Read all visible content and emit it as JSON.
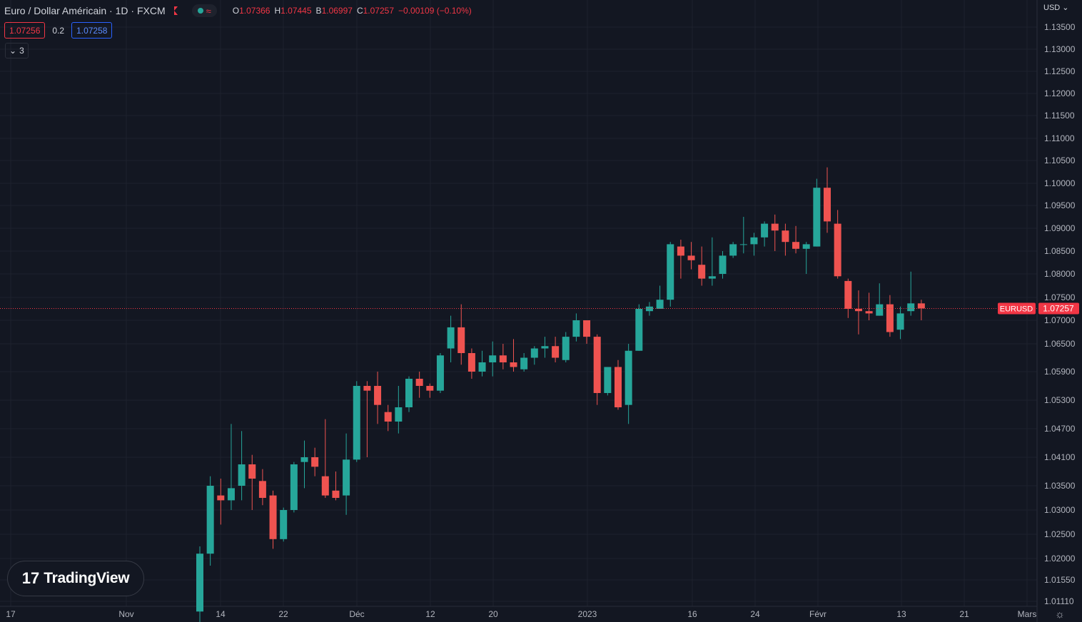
{
  "header": {
    "symbol_title": "Euro / Dollar Américain · 1D · FXCM",
    "ohlc": {
      "o_label": "O",
      "o": "1.07366",
      "h_label": "H",
      "h": "1.07445",
      "l_label": "B",
      "l": "1.06997",
      "c_label": "C",
      "c": "1.07257",
      "change": "−0.00109 (−0.10%)"
    },
    "bid": "1.07256",
    "spread": "0.2",
    "ask": "1.07258",
    "indicators_count": "3",
    "currency": "USD"
  },
  "logo": {
    "text": "TradingView",
    "mark": "17"
  },
  "colors": {
    "up": "#26a69a",
    "down": "#ef5350",
    "background": "#131722",
    "grid": "#1e222d",
    "price_line": "#f23645"
  },
  "chart_data": {
    "type": "candlestick",
    "symbol": "EURUSD",
    "last_price": "1.07257",
    "y_ticks": [
      "1.13500",
      "1.13000",
      "1.12500",
      "1.12000",
      "1.11500",
      "1.11000",
      "1.10500",
      "1.10000",
      "1.09500",
      "1.09000",
      "1.08500",
      "1.08000",
      "1.07500",
      "1.07000",
      "1.06500",
      "1.05900",
      "1.05300",
      "1.04700",
      "1.04100",
      "1.03500",
      "1.03000",
      "1.02500",
      "1.02000",
      "1.01550",
      "1.01110"
    ],
    "x_ticks": [
      "17",
      "Nov",
      "14",
      "22",
      "Déc",
      "12",
      "20",
      "2023",
      "16",
      "24",
      "Févr",
      "13",
      "21",
      "Mars"
    ],
    "candles": [
      {
        "o": 1.009,
        "h": 1.0225,
        "l": 1.005,
        "c": 1.021
      },
      {
        "o": 1.021,
        "h": 1.037,
        "l": 1.0185,
        "c": 1.035
      },
      {
        "o": 1.033,
        "h": 1.0365,
        "l": 1.027,
        "c": 1.032
      },
      {
        "o": 1.032,
        "h": 1.048,
        "l": 1.03,
        "c": 1.0345
      },
      {
        "o": 1.035,
        "h": 1.0465,
        "l": 1.032,
        "c": 1.0395
      },
      {
        "o": 1.0395,
        "h": 1.0415,
        "l": 1.03,
        "c": 1.0365
      },
      {
        "o": 1.036,
        "h": 1.0385,
        "l": 1.031,
        "c": 1.0325
      },
      {
        "o": 1.033,
        "h": 1.034,
        "l": 1.022,
        "c": 1.024
      },
      {
        "o": 1.024,
        "h": 1.0305,
        "l": 1.0235,
        "c": 1.03
      },
      {
        "o": 1.03,
        "h": 1.04,
        "l": 1.0295,
        "c": 1.0395
      },
      {
        "o": 1.04,
        "h": 1.0445,
        "l": 1.0345,
        "c": 1.041
      },
      {
        "o": 1.041,
        "h": 1.043,
        "l": 1.037,
        "c": 1.039
      },
      {
        "o": 1.037,
        "h": 1.049,
        "l": 1.0325,
        "c": 1.033
      },
      {
        "o": 1.034,
        "h": 1.038,
        "l": 1.032,
        "c": 1.0325
      },
      {
        "o": 1.033,
        "h": 1.046,
        "l": 1.029,
        "c": 1.0405
      },
      {
        "o": 1.0405,
        "h": 1.057,
        "l": 1.04,
        "c": 1.056
      },
      {
        "o": 1.056,
        "h": 1.057,
        "l": 1.041,
        "c": 1.055
      },
      {
        "o": 1.056,
        "h": 1.059,
        "l": 1.048,
        "c": 1.052
      },
      {
        "o": 1.0505,
        "h": 1.052,
        "l": 1.0465,
        "c": 1.0485
      },
      {
        "o": 1.0485,
        "h": 1.056,
        "l": 1.046,
        "c": 1.0515
      },
      {
        "o": 1.0515,
        "h": 1.058,
        "l": 1.0505,
        "c": 1.0575
      },
      {
        "o": 1.0575,
        "h": 1.059,
        "l": 1.0535,
        "c": 1.056
      },
      {
        "o": 1.056,
        "h": 1.0565,
        "l": 1.0535,
        "c": 1.055
      },
      {
        "o": 1.055,
        "h": 1.063,
        "l": 1.0545,
        "c": 1.0625
      },
      {
        "o": 1.064,
        "h": 1.071,
        "l": 1.061,
        "c": 1.0685
      },
      {
        "o": 1.0685,
        "h": 1.0735,
        "l": 1.0605,
        "c": 1.063
      },
      {
        "o": 1.063,
        "h": 1.064,
        "l": 1.0575,
        "c": 1.059
      },
      {
        "o": 1.059,
        "h": 1.0635,
        "l": 1.058,
        "c": 1.061
      },
      {
        "o": 1.061,
        "h": 1.0655,
        "l": 1.058,
        "c": 1.0625
      },
      {
        "o": 1.0625,
        "h": 1.065,
        "l": 1.0595,
        "c": 1.061
      },
      {
        "o": 1.061,
        "h": 1.066,
        "l": 1.059,
        "c": 1.06
      },
      {
        "o": 1.0595,
        "h": 1.063,
        "l": 1.059,
        "c": 1.062
      },
      {
        "o": 1.062,
        "h": 1.0645,
        "l": 1.0605,
        "c": 1.064
      },
      {
        "o": 1.064,
        "h": 1.0665,
        "l": 1.062,
        "c": 1.0645
      },
      {
        "o": 1.0645,
        "h": 1.0665,
        "l": 1.061,
        "c": 1.062
      },
      {
        "o": 1.0615,
        "h": 1.0675,
        "l": 1.061,
        "c": 1.0665
      },
      {
        "o": 1.0665,
        "h": 1.0715,
        "l": 1.0655,
        "c": 1.07
      },
      {
        "o": 1.07,
        "h": 1.07,
        "l": 1.065,
        "c": 1.0665
      },
      {
        "o": 1.0665,
        "h": 1.067,
        "l": 1.052,
        "c": 1.0545
      },
      {
        "o": 1.0545,
        "h": 1.06,
        "l": 1.054,
        "c": 1.06
      },
      {
        "o": 1.06,
        "h": 1.0615,
        "l": 1.051,
        "c": 1.0515
      },
      {
        "o": 1.052,
        "h": 1.065,
        "l": 1.048,
        "c": 1.0635
      },
      {
        "o": 1.0635,
        "h": 1.0735,
        "l": 1.0635,
        "c": 1.0725
      },
      {
        "o": 1.072,
        "h": 1.074,
        "l": 1.071,
        "c": 1.073
      },
      {
        "o": 1.0725,
        "h": 1.0775,
        "l": 1.0725,
        "c": 1.0745
      },
      {
        "o": 1.0745,
        "h": 1.087,
        "l": 1.073,
        "c": 1.0865
      },
      {
        "o": 1.086,
        "h": 1.0875,
        "l": 1.079,
        "c": 1.084
      },
      {
        "o": 1.084,
        "h": 1.087,
        "l": 1.081,
        "c": 1.083
      },
      {
        "o": 1.082,
        "h": 1.086,
        "l": 1.0775,
        "c": 1.079
      },
      {
        "o": 1.079,
        "h": 1.088,
        "l": 1.0775,
        "c": 1.0795
      },
      {
        "o": 1.08,
        "h": 1.085,
        "l": 1.079,
        "c": 1.084
      },
      {
        "o": 1.084,
        "h": 1.087,
        "l": 1.0835,
        "c": 1.0865
      },
      {
        "o": 1.0865,
        "h": 1.0925,
        "l": 1.0845,
        "c": 1.0865
      },
      {
        "o": 1.0865,
        "h": 1.089,
        "l": 1.084,
        "c": 1.088
      },
      {
        "o": 1.088,
        "h": 1.0915,
        "l": 1.086,
        "c": 1.091
      },
      {
        "o": 1.091,
        "h": 1.093,
        "l": 1.085,
        "c": 1.0895
      },
      {
        "o": 1.0895,
        "h": 1.091,
        "l": 1.084,
        "c": 1.087
      },
      {
        "o": 1.087,
        "h": 1.0905,
        "l": 1.0845,
        "c": 1.0855
      },
      {
        "o": 1.0855,
        "h": 1.087,
        "l": 1.08,
        "c": 1.0865
      },
      {
        "o": 1.086,
        "h": 1.101,
        "l": 1.086,
        "c": 1.099
      },
      {
        "o": 1.099,
        "h": 1.1035,
        "l": 1.089,
        "c": 1.0915
      },
      {
        "o": 1.091,
        "h": 1.094,
        "l": 1.079,
        "c": 1.0795
      },
      {
        "o": 1.0785,
        "h": 1.079,
        "l": 1.0705,
        "c": 1.0725
      },
      {
        "o": 1.0725,
        "h": 1.0765,
        "l": 1.067,
        "c": 1.072
      },
      {
        "o": 1.072,
        "h": 1.076,
        "l": 1.07,
        "c": 1.0715
      },
      {
        "o": 1.071,
        "h": 1.078,
        "l": 1.071,
        "c": 1.0735
      },
      {
        "o": 1.0735,
        "h": 1.0755,
        "l": 1.0665,
        "c": 1.0675
      },
      {
        "o": 1.068,
        "h": 1.073,
        "l": 1.066,
        "c": 1.0715
      },
      {
        "o": 1.072,
        "h": 1.0805,
        "l": 1.071,
        "c": 1.0737
      },
      {
        "o": 1.0737,
        "h": 1.0745,
        "l": 1.07,
        "c": 1.0726
      }
    ]
  }
}
